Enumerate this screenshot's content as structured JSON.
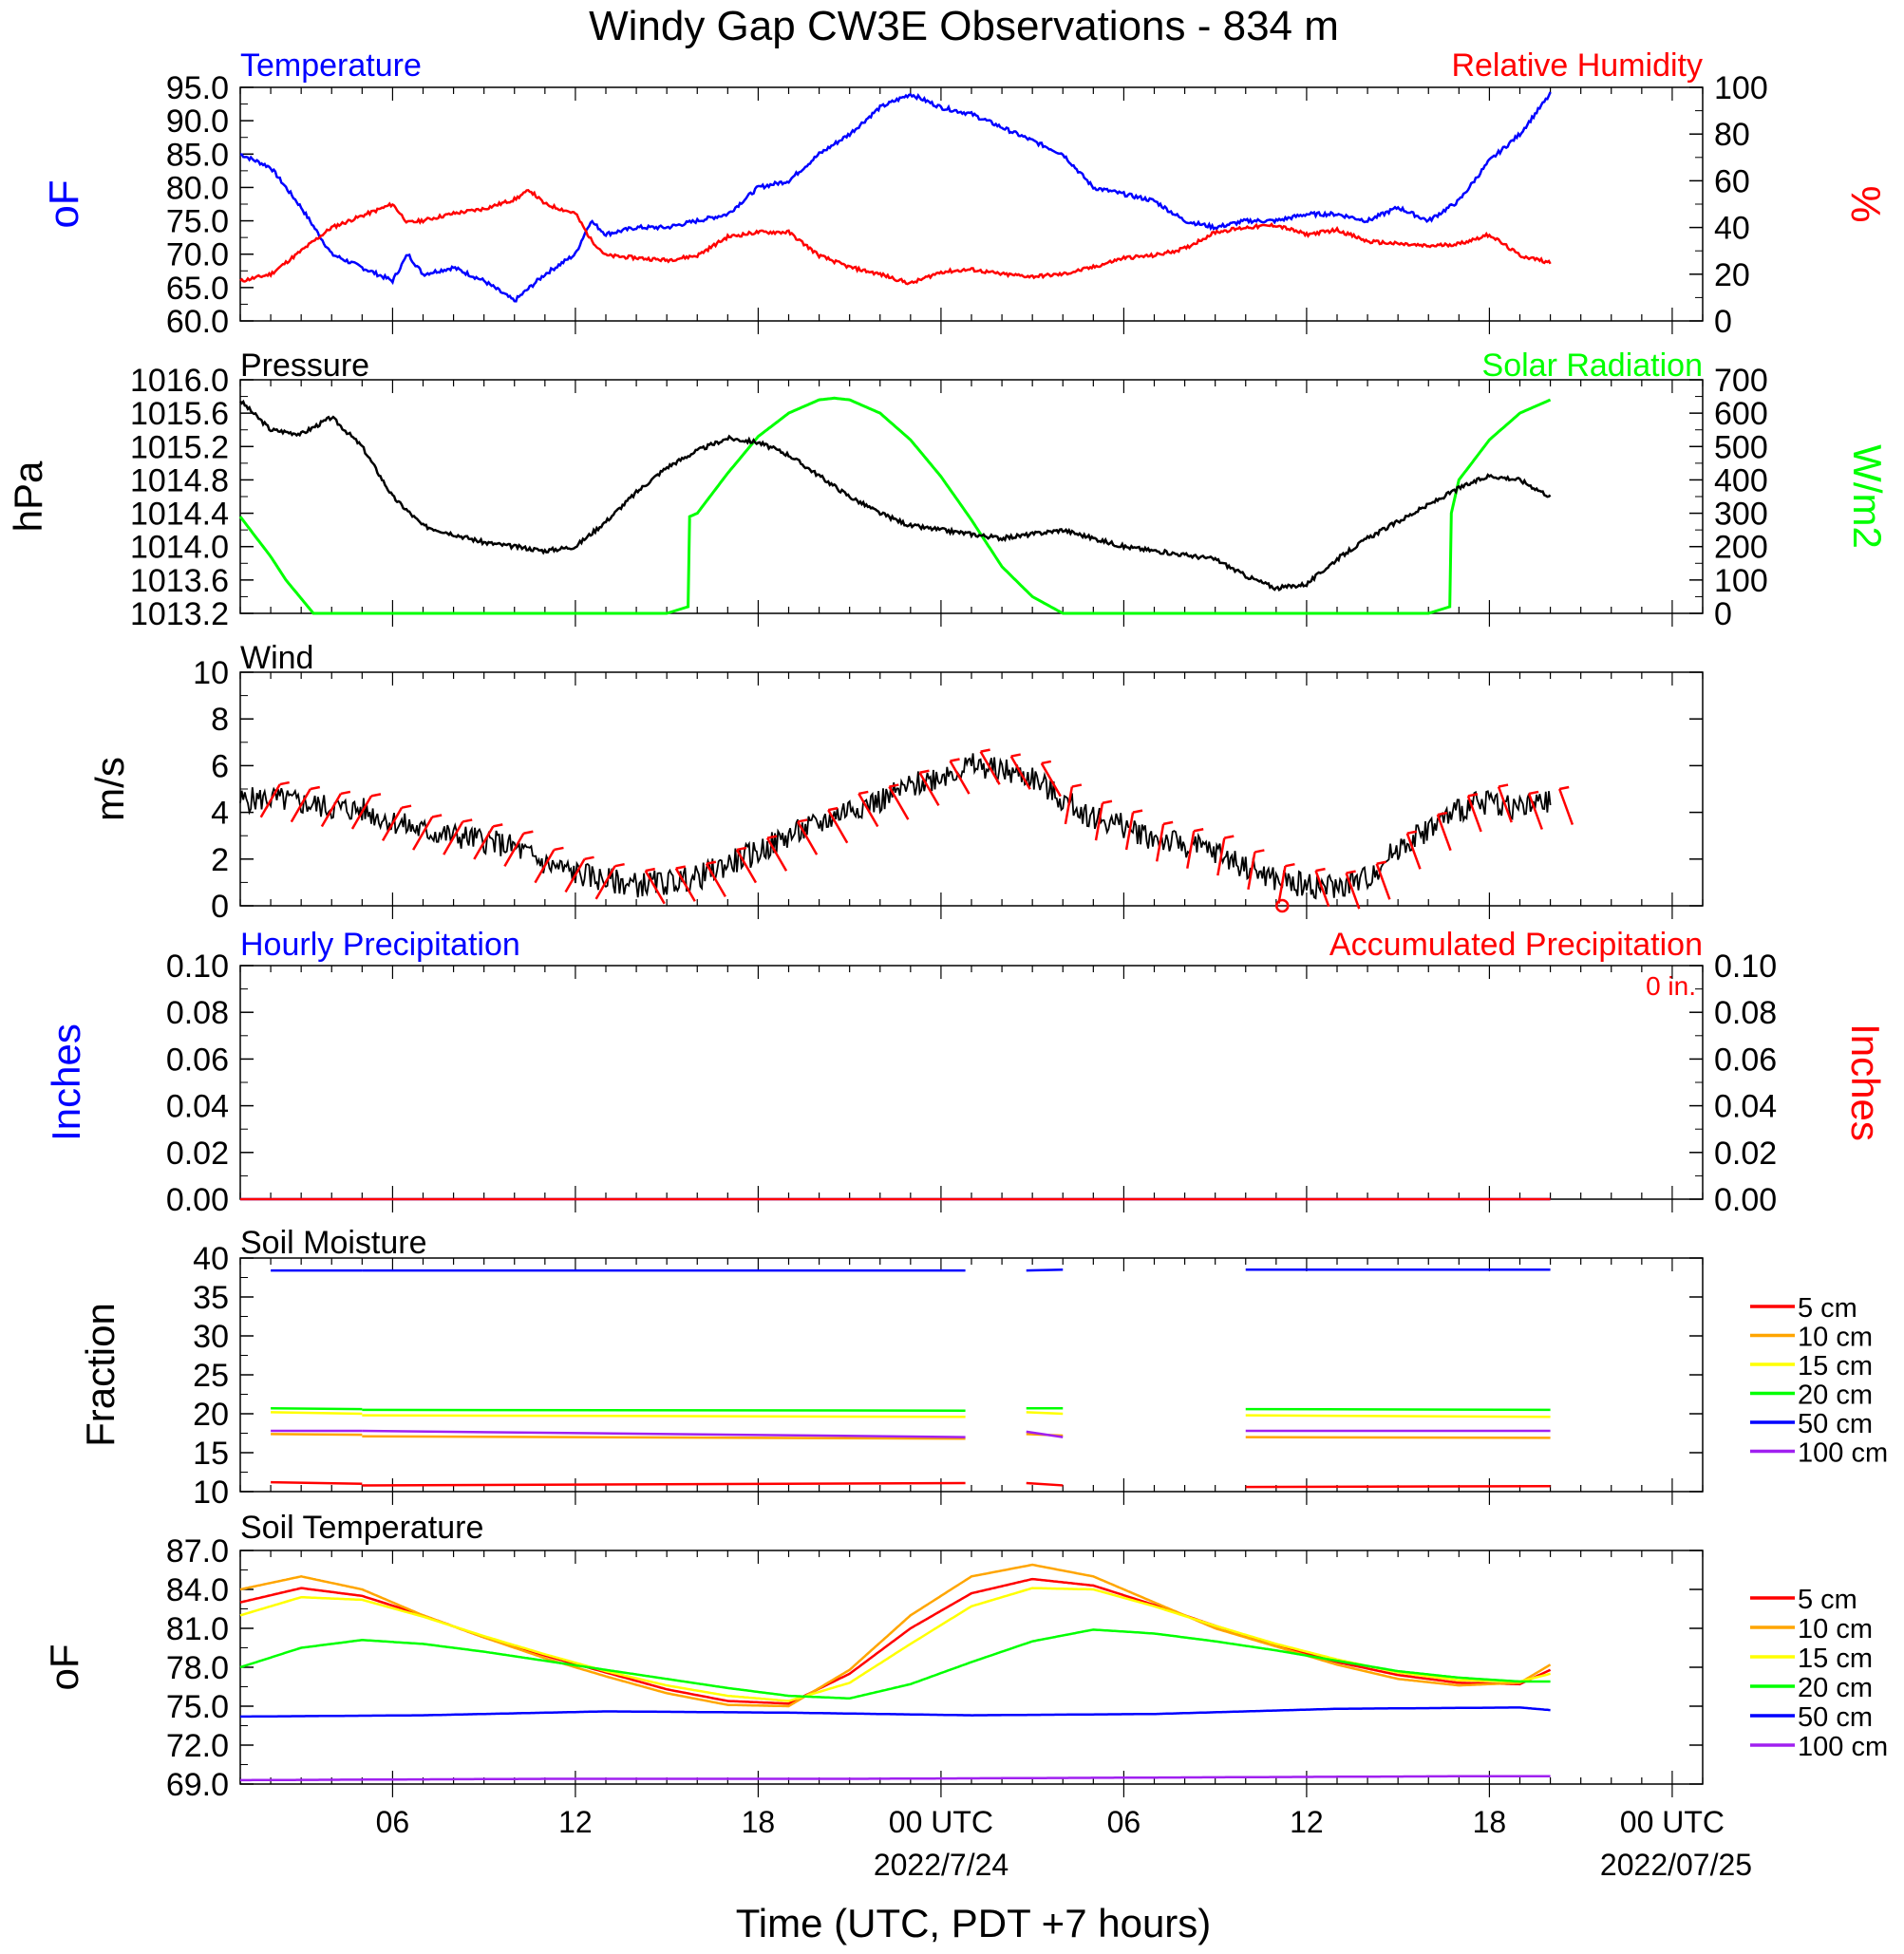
{
  "title": "Windy Gap CW3E Observations - 834 m",
  "xlabel": "Time (UTC, PDT +7 hours)",
  "x_ticks": [
    "06",
    "12",
    "18",
    "00 UTC",
    "06",
    "12",
    "18",
    "00 UTC"
  ],
  "date_labels": [
    "2022/7/24",
    "2022/07/25"
  ],
  "colors": {
    "blue": "#0000ff",
    "red": "#ff0000",
    "green": "#00ff00",
    "black": "#000000",
    "orange": "#ffa500",
    "yellow": "#ffff00",
    "purple": "#a020f0"
  },
  "panels": {
    "temp_rh": {
      "left_title": "Temperature",
      "right_title": "Relative Humidity",
      "left_unit": "oF",
      "right_unit": "%",
      "left_ticks": [
        "95.0",
        "90.0",
        "85.0",
        "80.0",
        "75.0",
        "70.0",
        "65.0",
        "60.0"
      ],
      "right_ticks": [
        "100",
        "80",
        "60",
        "40",
        "20",
        "0"
      ]
    },
    "pressure": {
      "left_title": "Pressure",
      "right_title": "Solar Radiation",
      "left_unit": "hPa",
      "right_unit": "W/m2",
      "left_ticks": [
        "1016.0",
        "1015.6",
        "1015.2",
        "1014.8",
        "1014.4",
        "1014.0",
        "1013.6",
        "1013.2"
      ],
      "right_ticks": [
        "700",
        "600",
        "500",
        "400",
        "300",
        "200",
        "100",
        "0"
      ]
    },
    "wind": {
      "left_title": "Wind",
      "left_unit": "m/s",
      "left_ticks": [
        "10",
        "8",
        "6",
        "4",
        "2",
        "0"
      ]
    },
    "precip": {
      "left_title": "Hourly Precipitation",
      "right_title": "Accumulated Precipitation",
      "accum_text": "0 in.",
      "left_unit": "Inches",
      "right_unit": "Inches",
      "left_ticks": [
        "0.10",
        "0.08",
        "0.06",
        "0.04",
        "0.02",
        "0.00"
      ],
      "right_ticks": [
        "0.10",
        "0.08",
        "0.06",
        "0.04",
        "0.02",
        "0.00"
      ]
    },
    "soil_moisture": {
      "left_title": "Soil Moisture",
      "left_unit": "Fraction",
      "left_ticks": [
        "40",
        "35",
        "30",
        "25",
        "20",
        "15",
        "10"
      ],
      "legend": [
        "5 cm",
        "10 cm",
        "15 cm",
        "20 cm",
        "50 cm",
        "100 cm"
      ]
    },
    "soil_temp": {
      "left_title": "Soil Temperature",
      "left_unit": "oF",
      "left_ticks": [
        "87.0",
        "84.0",
        "81.0",
        "78.0",
        "75.0",
        "72.0",
        "69.0"
      ],
      "legend": [
        "5 cm",
        "10 cm",
        "15 cm",
        "20 cm",
        "50 cm",
        "100 cm"
      ]
    }
  },
  "chart_data": [
    {
      "type": "line",
      "title": "Temperature / Relative Humidity",
      "x_unit": "hours since 2022-07-23 01 UTC",
      "xlim": [
        0,
        48
      ],
      "ylim": [
        60,
        95
      ],
      "y2lim": [
        0,
        100
      ],
      "series": [
        {
          "name": "Temperature",
          "axis": "left",
          "color": "#0000ff",
          "x": [
            0,
            1,
            2,
            3,
            4,
            5,
            5.5,
            6,
            7,
            8,
            9,
            9.5,
            10,
            11,
            11.5,
            12,
            13,
            14,
            15,
            16,
            17,
            18,
            19,
            20,
            21,
            22,
            23,
            24,
            25,
            26,
            27,
            28,
            29,
            30,
            31,
            32,
            33,
            34,
            35,
            36,
            37,
            38,
            39,
            40,
            41,
            42,
            43
          ],
          "y": [
            85,
            83,
            77,
            70,
            68,
            66,
            70,
            67,
            68,
            66,
            63,
            65,
            67,
            70,
            75,
            73,
            74,
            74,
            75,
            76,
            80,
            81,
            85,
            88,
            92,
            94,
            92,
            91,
            89,
            87,
            85,
            80,
            79,
            78,
            75,
            74,
            75,
            75,
            76,
            76,
            75,
            77,
            75,
            78,
            84,
            88,
            94
          ]
        },
        {
          "name": "Relative Humidity",
          "axis": "right",
          "color": "#ff0000",
          "x": [
            0,
            1,
            2,
            3,
            4,
            5,
            5.5,
            6,
            7,
            8,
            9,
            9.5,
            10,
            11,
            11.5,
            12,
            13,
            14,
            15,
            16,
            17,
            18,
            19,
            20,
            21,
            22,
            23,
            24,
            25,
            26,
            27,
            28,
            29,
            30,
            31,
            32,
            33,
            34,
            35,
            36,
            37,
            38,
            39,
            40,
            41,
            42,
            43
          ],
          "y": [
            17,
            20,
            30,
            40,
            45,
            50,
            42,
            43,
            46,
            48,
            52,
            56,
            50,
            46,
            35,
            28,
            27,
            26,
            28,
            36,
            38,
            38,
            28,
            23,
            20,
            16,
            21,
            22,
            20,
            19,
            20,
            23,
            27,
            28,
            31,
            38,
            40,
            41,
            37,
            39,
            34,
            33,
            32,
            33,
            37,
            28,
            25
          ]
        }
      ]
    },
    {
      "type": "line",
      "title": "Pressure / Solar Radiation",
      "x_unit": "hours since 2022-07-23 01 UTC",
      "xlim": [
        0,
        48
      ],
      "ylim": [
        1013.2,
        1016.0
      ],
      "y2lim": [
        0,
        700
      ],
      "series": [
        {
          "name": "Pressure",
          "axis": "left",
          "color": "#000000",
          "x": [
            0,
            1,
            2,
            3,
            4,
            5,
            6,
            7,
            8,
            9,
            10,
            11,
            12,
            13,
            14,
            15,
            16,
            17,
            18,
            19,
            20,
            21,
            22,
            23,
            24,
            25,
            26,
            27,
            28,
            29,
            30,
            31,
            32,
            33,
            34,
            35,
            36,
            37,
            38,
            39,
            40,
            41,
            42,
            43
          ],
          "y": [
            1015.75,
            1015.4,
            1015.35,
            1015.55,
            1015.2,
            1014.6,
            1014.25,
            1014.15,
            1014.05,
            1014.0,
            1013.95,
            1014.0,
            1014.3,
            1014.65,
            1014.95,
            1015.15,
            1015.3,
            1015.25,
            1015.1,
            1014.85,
            1014.6,
            1014.4,
            1014.25,
            1014.2,
            1014.15,
            1014.1,
            1014.15,
            1014.2,
            1014.1,
            1014.0,
            1013.95,
            1013.9,
            1013.85,
            1013.65,
            1013.5,
            1013.55,
            1013.85,
            1014.1,
            1014.3,
            1014.5,
            1014.7,
            1014.85,
            1014.8,
            1014.6
          ]
        },
        {
          "name": "Solar Radiation",
          "axis": "right",
          "color": "#00ff00",
          "x": [
            0,
            0.5,
            1,
            1.5,
            2.4,
            14,
            14.7,
            14.75,
            15,
            16,
            17,
            18,
            19,
            19.5,
            20,
            21,
            22,
            23,
            24,
            25,
            26,
            27,
            28,
            28.5,
            39,
            39.7,
            39.75,
            40,
            41,
            42,
            43
          ],
          "y": [
            290,
            230,
            170,
            100,
            0,
            0,
            20,
            290,
            300,
            420,
            530,
            600,
            640,
            645,
            640,
            600,
            520,
            410,
            280,
            140,
            50,
            0,
            0,
            0,
            0,
            20,
            300,
            400,
            520,
            600,
            640
          ]
        }
      ]
    },
    {
      "type": "line",
      "title": "Wind",
      "x_unit": "hours since 2022-07-23 01 UTC",
      "xlim": [
        0,
        48
      ],
      "ylim": [
        0,
        10
      ],
      "series": [
        {
          "name": "Wind",
          "color": "#000000",
          "x": [
            0,
            1,
            2,
            3,
            4,
            5,
            6,
            7,
            8,
            9,
            10,
            11,
            12,
            13,
            14,
            15,
            16,
            17,
            18,
            19,
            20,
            21,
            22,
            23,
            24,
            25,
            26,
            27,
            28,
            29,
            30,
            31,
            32,
            33,
            34,
            35,
            36,
            37,
            38,
            39,
            40,
            41,
            42,
            43
          ],
          "y": [
            4.5,
            4.6,
            4.4,
            4.2,
            4.1,
            3.6,
            3.2,
            3.0,
            2.8,
            2.5,
            1.8,
            1.4,
            1.1,
            0.9,
            1.0,
            1.2,
            1.8,
            2.3,
            3.0,
            3.5,
            4.2,
            4.5,
            5.1,
            5.6,
            6.0,
            5.8,
            5.5,
            4.5,
            3.8,
            3.4,
            2.9,
            2.6,
            2.3,
            1.7,
            1.1,
            0.9,
            0.8,
            1.2,
            2.5,
            3.3,
            4.1,
            4.5,
            4.2,
            4.4
          ]
        }
      ]
    },
    {
      "type": "line",
      "title": "Hourly / Accumulated Precipitation",
      "x_unit": "hours since 2022-07-23 01 UTC",
      "xlim": [
        0,
        48
      ],
      "ylim": [
        0,
        0.1
      ],
      "y2lim": [
        0,
        0.1
      ],
      "series": [
        {
          "name": "Hourly Precipitation",
          "axis": "left",
          "color": "#0000ff",
          "x": [
            0,
            43
          ],
          "y": [
            0,
            0
          ]
        },
        {
          "name": "Accumulated Precipitation",
          "axis": "right",
          "color": "#ff0000",
          "x": [
            0,
            43
          ],
          "y": [
            0,
            0
          ]
        }
      ]
    },
    {
      "type": "line",
      "title": "Soil Moisture",
      "x_unit": "hours since 2022-07-23 01 UTC",
      "xlim": [
        0,
        48
      ],
      "ylim": [
        10,
        40
      ],
      "series": [
        {
          "name": "5 cm",
          "color": "#ff0000",
          "values": [
            11.2,
            11.0,
            10.8,
            11.1,
            11.1,
            10.8,
            10.6,
            10.7
          ]
        },
        {
          "name": "10 cm",
          "color": "#ffa500",
          "values": [
            17.4,
            17.3,
            17.1,
            16.8,
            17.4,
            17.2,
            17.0,
            16.9
          ]
        },
        {
          "name": "15 cm",
          "color": "#ffff00",
          "values": [
            20.2,
            20.0,
            19.8,
            19.6,
            20.2,
            20.0,
            19.8,
            19.6
          ]
        },
        {
          "name": "20 cm",
          "color": "#00ff00",
          "values": [
            20.7,
            20.6,
            20.5,
            20.4,
            20.7,
            20.7,
            20.6,
            20.5
          ]
        },
        {
          "name": "50 cm",
          "color": "#0000ff",
          "values": [
            38.4,
            38.4,
            38.4,
            38.4,
            38.4,
            38.5,
            38.5,
            38.5
          ]
        },
        {
          "name": "100 cm",
          "color": "#a020f0",
          "values": [
            17.8,
            17.8,
            17.8,
            17.0,
            17.7,
            17.0,
            17.8,
            17.8
          ]
        }
      ]
    },
    {
      "type": "line",
      "title": "Soil Temperature",
      "x_unit": "hours since 2022-07-23 01 UTC",
      "xlim": [
        0,
        48
      ],
      "ylim": [
        69,
        87
      ],
      "series": [
        {
          "name": "5 cm",
          "color": "#ff0000",
          "x": [
            0,
            2,
            4,
            6,
            8,
            10,
            12,
            14,
            16,
            18,
            20,
            22,
            24,
            26,
            28,
            30,
            32,
            34,
            36,
            38,
            40,
            42,
            43
          ],
          "y": [
            83,
            84.1,
            83.5,
            82,
            80.3,
            78.9,
            77.6,
            76.3,
            75.4,
            75.2,
            77.5,
            81,
            83.7,
            84.8,
            84.3,
            82.8,
            81.2,
            79.7,
            78.4,
            77.4,
            76.8,
            76.7,
            77.8
          ]
        },
        {
          "name": "10 cm",
          "color": "#ffa500",
          "x": [
            0,
            2,
            4,
            6,
            8,
            10,
            12,
            14,
            16,
            18,
            20,
            22,
            24,
            26,
            28,
            30,
            32,
            34,
            36,
            38,
            40,
            42,
            43
          ],
          "y": [
            84,
            85,
            84,
            82,
            80.3,
            78.7,
            77.3,
            76,
            75.1,
            75,
            77.8,
            82,
            85,
            85.9,
            85,
            83,
            81,
            79.6,
            78.2,
            77.1,
            76.6,
            76.8,
            78.2
          ]
        },
        {
          "name": "15 cm",
          "color": "#ffff00",
          "x": [
            0,
            2,
            4,
            6,
            8,
            10,
            12,
            14,
            16,
            18,
            20,
            22,
            24,
            26,
            28,
            30,
            32,
            34,
            36,
            38,
            40,
            42,
            43
          ],
          "y": [
            82,
            83.4,
            83.2,
            81.9,
            80.4,
            79,
            77.7,
            76.6,
            75.8,
            75.4,
            76.8,
            79.8,
            82.7,
            84.1,
            84,
            82.7,
            81.2,
            79.8,
            78.6,
            77.6,
            77,
            76.9,
            77.5
          ]
        },
        {
          "name": "20 cm",
          "color": "#00ff00",
          "x": [
            0,
            2,
            4,
            6,
            8,
            10,
            12,
            14,
            16,
            18,
            20,
            22,
            24,
            26,
            28,
            30,
            32,
            34,
            36,
            38,
            40,
            42,
            43
          ],
          "y": [
            78,
            79.5,
            80.1,
            79.8,
            79.2,
            78.5,
            77.8,
            77.1,
            76.4,
            75.8,
            75.6,
            76.7,
            78.4,
            80,
            80.9,
            80.6,
            80,
            79.3,
            78.5,
            77.7,
            77.2,
            76.9,
            76.9
          ]
        },
        {
          "name": "50 cm",
          "color": "#0000ff",
          "x": [
            0,
            6,
            12,
            18,
            24,
            30,
            36,
            42,
            43
          ],
          "y": [
            74.2,
            74.3,
            74.6,
            74.5,
            74.3,
            74.4,
            74.8,
            74.9,
            74.7
          ]
        },
        {
          "name": "100 cm",
          "color": "#a020f0",
          "x": [
            0,
            10,
            20,
            30,
            40,
            43
          ],
          "y": [
            69.3,
            69.4,
            69.4,
            69.5,
            69.6,
            69.6
          ]
        }
      ]
    }
  ]
}
